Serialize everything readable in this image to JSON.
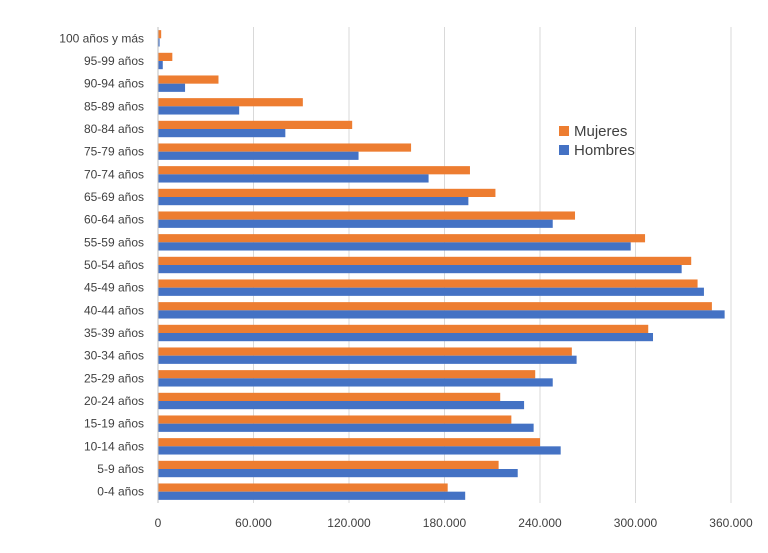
{
  "chart_data": {
    "type": "bar",
    "orientation": "horizontal",
    "categories": [
      "0-4 años",
      "5-9 años",
      "10-14 años",
      "15-19 años",
      "20-24 años",
      "25-29 años",
      "30-34 años",
      "35-39 años",
      "40-44 años",
      "45-49 años",
      "50-54 años",
      "55-59 años",
      "60-64 años",
      "65-69 años",
      "70-74 años",
      "75-79 años",
      "80-84 años",
      "85-89 años",
      "90-94 años",
      "95-99 años",
      "100 años y más"
    ],
    "series": [
      {
        "name": "Mujeres",
        "color": "#ED7D31",
        "values": [
          182000,
          214000,
          240000,
          222000,
          215000,
          237000,
          260000,
          308000,
          348000,
          339000,
          335000,
          306000,
          262000,
          212000,
          196000,
          159000,
          122000,
          91000,
          38000,
          9000,
          2000
        ]
      },
      {
        "name": "Hombres",
        "color": "#4472C4",
        "values": [
          193000,
          226000,
          253000,
          236000,
          230000,
          248000,
          263000,
          311000,
          356000,
          343000,
          329000,
          297000,
          248000,
          195000,
          170000,
          126000,
          80000,
          51000,
          17000,
          3000,
          1000
        ]
      }
    ],
    "xlim": [
      0,
      360000
    ],
    "x_ticks": [
      0,
      60000,
      120000,
      180000,
      240000,
      300000,
      360000
    ],
    "x_tick_labels": [
      "0",
      "60.000",
      "120.000",
      "180.000",
      "240.000",
      "300.000",
      "360.000"
    ],
    "grid": "vertical",
    "legend_position": "right-center",
    "title": "",
    "xlabel": "",
    "ylabel": ""
  }
}
